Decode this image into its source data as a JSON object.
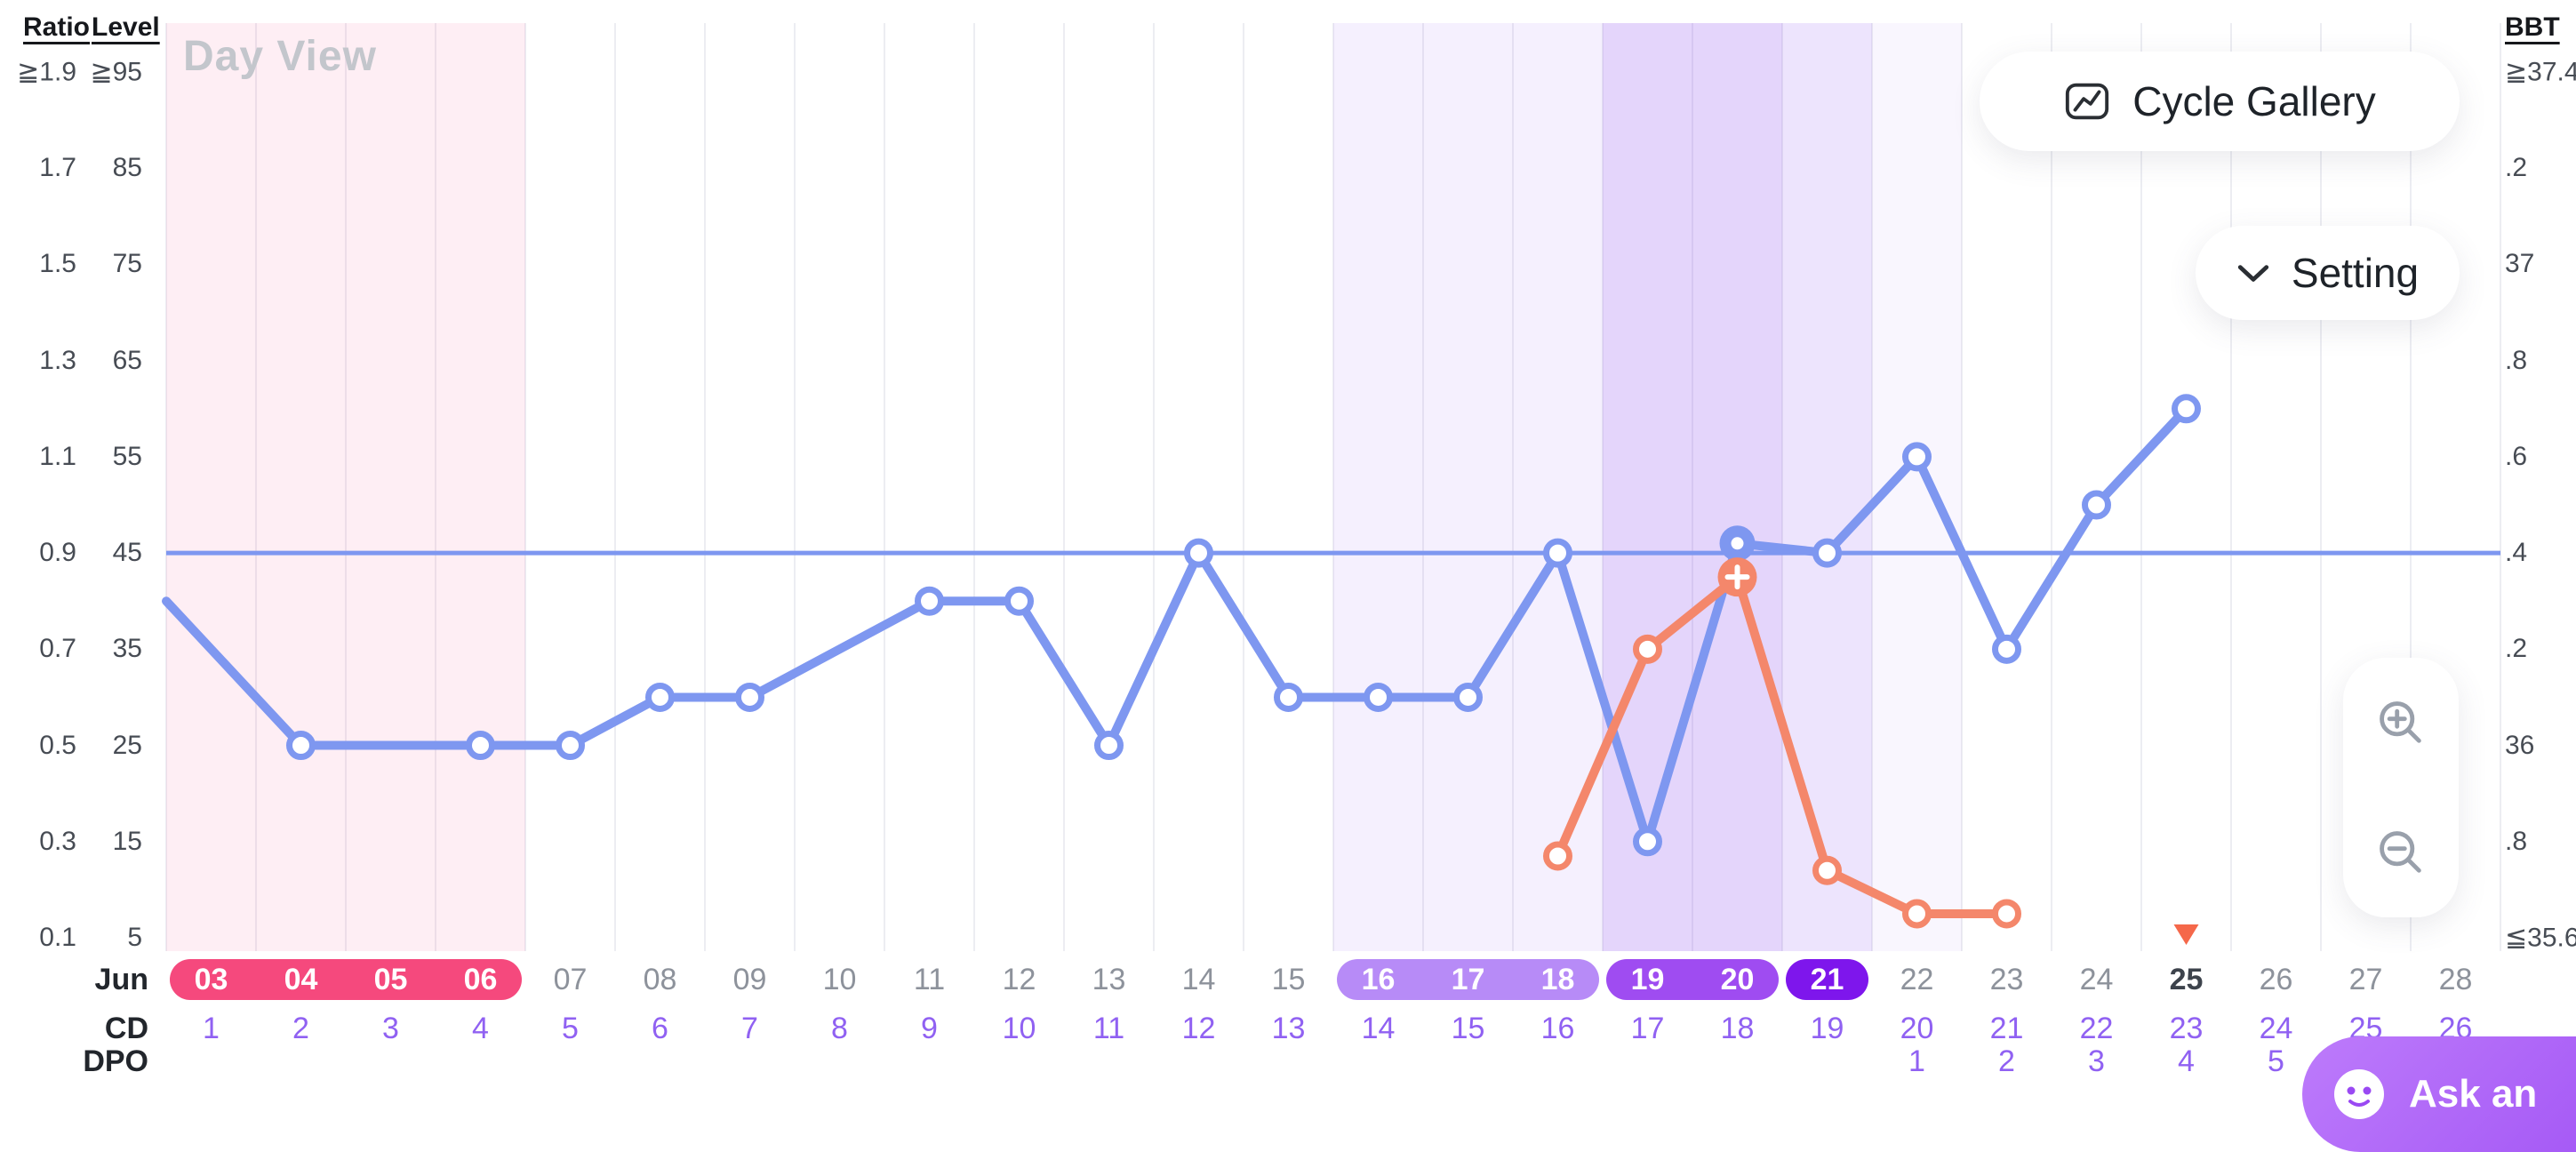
{
  "palette": {
    "bbt_line": "#7e97f0",
    "ratio_line": "#f4876b",
    "coverline": "#7e97f0",
    "period_pill": "#f5497d",
    "fertile_pill": "#b78bf7",
    "high_pill": "#9f4cf1",
    "peak_pill": "#7e16ec",
    "cd_text": "#9061f2",
    "today_text": "#3d434c",
    "today_marker": "#f5684a"
  },
  "header": {
    "view_label": "Day View",
    "cycle_gallery": "Cycle Gallery",
    "setting": "Setting",
    "ask": "Ask an"
  },
  "axes": {
    "left_primary_title": "Ratio",
    "left_secondary_title": "Level",
    "right_title": "BBT",
    "ratio_ticks": [
      "≧1.9",
      "1.7",
      "1.5",
      "1.3",
      "1.1",
      "0.9",
      "0.7",
      "0.5",
      "0.3",
      "0.1"
    ],
    "level_ticks": [
      "≧95",
      "85",
      "75",
      "65",
      "55",
      "45",
      "35",
      "25",
      "15",
      "5"
    ],
    "bbt_ticks": [
      "≧37.4",
      ".2",
      "37",
      ".8",
      ".6",
      ".4",
      ".2",
      "36",
      ".8",
      "≦35.6"
    ]
  },
  "chart_data": {
    "type": "line",
    "x_month": "Jun",
    "row_labels": {
      "month": "Jun",
      "cd": "CD",
      "dpo": "DPO"
    },
    "days": [
      "03",
      "04",
      "05",
      "06",
      "07",
      "08",
      "09",
      "10",
      "11",
      "12",
      "13",
      "14",
      "15",
      "16",
      "17",
      "18",
      "19",
      "20",
      "21",
      "22",
      "23",
      "24",
      "25",
      "26",
      "27",
      "28"
    ],
    "cycle_days": [
      "1",
      "2",
      "3",
      "4",
      "5",
      "6",
      "7",
      "8",
      "9",
      "10",
      "11",
      "12",
      "13",
      "14",
      "15",
      "16",
      "17",
      "18",
      "19",
      "20",
      "21",
      "22",
      "23",
      "24",
      "25",
      "26"
    ],
    "dpo": [
      "",
      "",
      "",
      "",
      "",
      "",
      "",
      "",
      "",
      "",
      "",
      "",
      "",
      "",
      "",
      "",
      "",
      "",
      "",
      "1",
      "2",
      "3",
      "4",
      "5",
      "",
      ""
    ],
    "day_states": [
      "period",
      "period",
      "period",
      "period",
      "normal",
      "normal",
      "normal",
      "normal",
      "normal",
      "normal",
      "normal",
      "normal",
      "normal",
      "fertile",
      "fertile",
      "fertile",
      "high",
      "high",
      "peak",
      "normal",
      "normal",
      "normal",
      "today",
      "normal",
      "normal",
      "normal"
    ],
    "today_day": "25",
    "bbt_axis_range": [
      35.6,
      37.4
    ],
    "ratio_axis_range": [
      0.1,
      1.9
    ],
    "level_axis_range": [
      5,
      95
    ],
    "coverline_bbt": 36.4,
    "grid": "vertical",
    "legend": "none",
    "series": [
      {
        "name": "BBT",
        "axis": "bbt",
        "color": "#7e97f0",
        "points": [
          {
            "day": "03",
            "value": 36.3,
            "marker": false,
            "edge": true
          },
          {
            "day": "04",
            "value": 36.0
          },
          {
            "day": "06",
            "value": 36.0
          },
          {
            "day": "07",
            "value": 36.0
          },
          {
            "day": "08",
            "value": 36.1
          },
          {
            "day": "09",
            "value": 36.1
          },
          {
            "day": "11",
            "value": 36.3
          },
          {
            "day": "12",
            "value": 36.3
          },
          {
            "day": "13",
            "value": 36.0
          },
          {
            "day": "14",
            "value": 36.4
          },
          {
            "day": "15",
            "value": 36.1
          },
          {
            "day": "16",
            "value": 36.1
          },
          {
            "day": "17",
            "value": 36.1
          },
          {
            "day": "18",
            "value": 36.4
          },
          {
            "day": "19",
            "value": 35.8
          },
          {
            "day": "20",
            "value": 36.42,
            "badge": "record"
          },
          {
            "day": "21",
            "value": 36.4
          },
          {
            "day": "22",
            "value": 36.6
          },
          {
            "day": "23",
            "value": 36.2
          },
          {
            "day": "24",
            "value": 36.5
          },
          {
            "day": "25",
            "value": 36.7
          }
        ]
      },
      {
        "name": "Ratio",
        "axis": "ratio",
        "color": "#f4876b",
        "points": [
          {
            "day": "18",
            "value": 0.27
          },
          {
            "day": "19",
            "value": 0.7
          },
          {
            "day": "20",
            "value": 0.85,
            "badge": "peak-plus"
          },
          {
            "day": "21",
            "value": 0.24
          },
          {
            "day": "22",
            "value": 0.15
          },
          {
            "day": "23",
            "value": 0.15
          }
        ]
      }
    ],
    "bands": [
      {
        "from": "03",
        "to": "06",
        "color": "rgba(246,93,152,0.10)",
        "name": "period-band"
      },
      {
        "from": "16",
        "to": "18",
        "color": "rgba(158,108,245,0.10)",
        "name": "fertile-band"
      },
      {
        "from": "19",
        "to": "20",
        "color": "rgba(146,86,240,0.25)",
        "name": "high-fertility-band"
      },
      {
        "from": "21",
        "to": "21",
        "color": "rgba(146,86,240,0.16)",
        "name": "peak-band"
      },
      {
        "from": "22",
        "to": "22",
        "color": "rgba(146,86,240,0.05)",
        "name": "post-peak-band"
      }
    ]
  }
}
